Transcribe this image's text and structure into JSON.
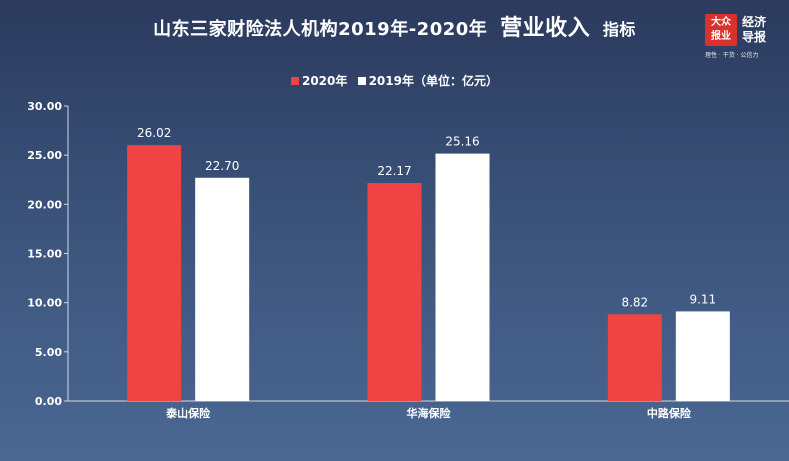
{
  "header": {
    "title_prefix": "山东三家财险法人机构2019年-2020年",
    "title_emphasis": "营业收入",
    "title_suffix": "指标"
  },
  "logo": {
    "badge_line1": "大众",
    "badge_line2": "报业",
    "name_line1": "经济",
    "name_line2": "导报",
    "tagline": "理性 · 干货 · 公信力"
  },
  "colors": {
    "series_2020": "#f04444",
    "series_2019": "#ffffff",
    "axis": "#cfd8e6",
    "grid": "#6f87ab"
  },
  "chart_data": {
    "type": "bar",
    "title": "",
    "xlabel": "",
    "ylabel": "",
    "unit_note": "（单位：亿元）",
    "categories": [
      "泰山保险",
      "华海保险",
      "中路保险"
    ],
    "series": [
      {
        "name": "2020年",
        "values": [
          26.02,
          22.17,
          8.82
        ]
      },
      {
        "name": "2019年",
        "values": [
          22.7,
          25.16,
          9.11
        ]
      }
    ],
    "ylim": [
      0,
      30
    ],
    "yticks": [
      "0.00",
      "5.00",
      "10.00",
      "15.00",
      "20.00",
      "25.00",
      "30.00"
    ],
    "legend_position": "top-center",
    "grid": true
  }
}
